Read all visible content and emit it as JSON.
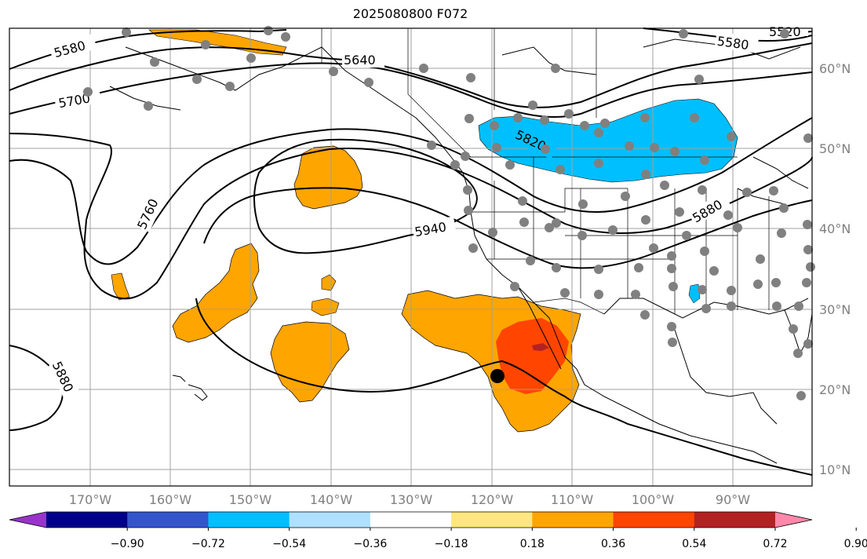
{
  "title": "2025080800 F072",
  "lat_labels": [
    "60°N",
    "50°N",
    "40°N",
    "30°N",
    "20°N",
    "10°N"
  ],
  "lon_labels": [
    "170°W",
    "160°W",
    "150°W",
    "140°W",
    "130°W",
    "120°W",
    "110°W",
    "100°W",
    "90°W"
  ],
  "contour_labels": [
    "5580",
    "5700",
    "5640",
    "5760",
    "5820",
    "5940",
    "5880",
    "5880",
    "5580",
    "5520"
  ],
  "colorbar": {
    "tick_labels": [
      "−0.90",
      "−0.72",
      "−0.54",
      "−0.36",
      "−0.18",
      "0.18",
      "0.36",
      "0.54",
      "0.72",
      "0.90"
    ],
    "colors": [
      "#9933cc",
      "#00008b",
      "#3355cc",
      "#00bfff",
      "#b0e0ff",
      "#ffffff",
      "#ffe680",
      "#ffa500",
      "#ff4500",
      "#b22222",
      "#ff88aa"
    ]
  },
  "colors": {
    "orange": "#ffa500",
    "red": "#ff4500",
    "darkred": "#b22222",
    "lightblue": "#00bfff",
    "light": "#b0e0ff",
    "station": "#808080"
  }
}
